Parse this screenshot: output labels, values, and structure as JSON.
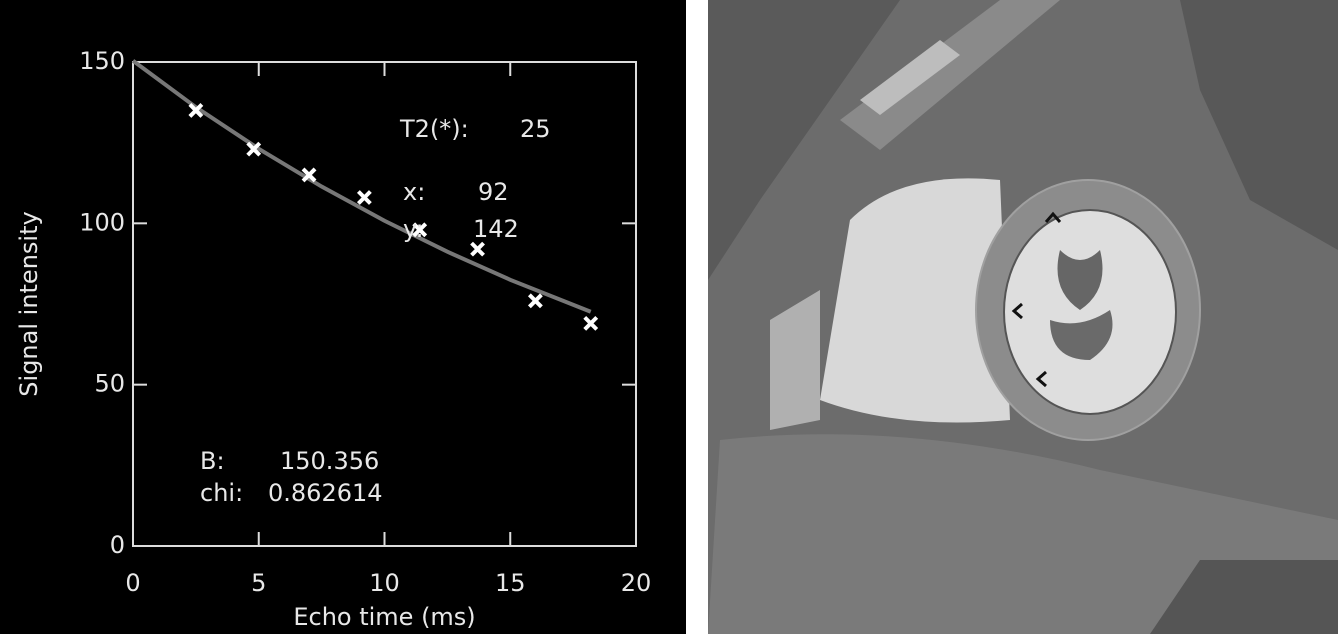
{
  "chart_data": {
    "type": "scatter",
    "xlabel": "Echo time (ms)",
    "ylabel": "Signal intensity",
    "xlim": [
      0,
      20
    ],
    "ylim": [
      0,
      150
    ],
    "xticks": [
      0,
      5,
      10,
      15,
      20
    ],
    "yticks": [
      0,
      50,
      100,
      150
    ],
    "series": [
      {
        "type": "scatter",
        "color": "#ffffff",
        "x": [
          2.5,
          4.8,
          7.0,
          9.2,
          11.4,
          13.7,
          16.0,
          18.2
        ],
        "values": [
          135,
          123,
          115,
          108,
          98,
          92,
          76,
          69
        ]
      },
      {
        "type": "line",
        "color": "#777777",
        "x": [
          0,
          2.5,
          5,
          7.5,
          10,
          12.5,
          15,
          18.2
        ],
        "values": [
          150.4,
          136.0,
          123.1,
          111.4,
          100.8,
          91.2,
          82.5,
          72.6
        ]
      }
    ],
    "annotations": [
      "T2(*):",
      "25",
      "x:",
      "92",
      "y:",
      "142",
      "B:",
      "150.356",
      "chi:",
      "0.862614"
    ]
  }
}
